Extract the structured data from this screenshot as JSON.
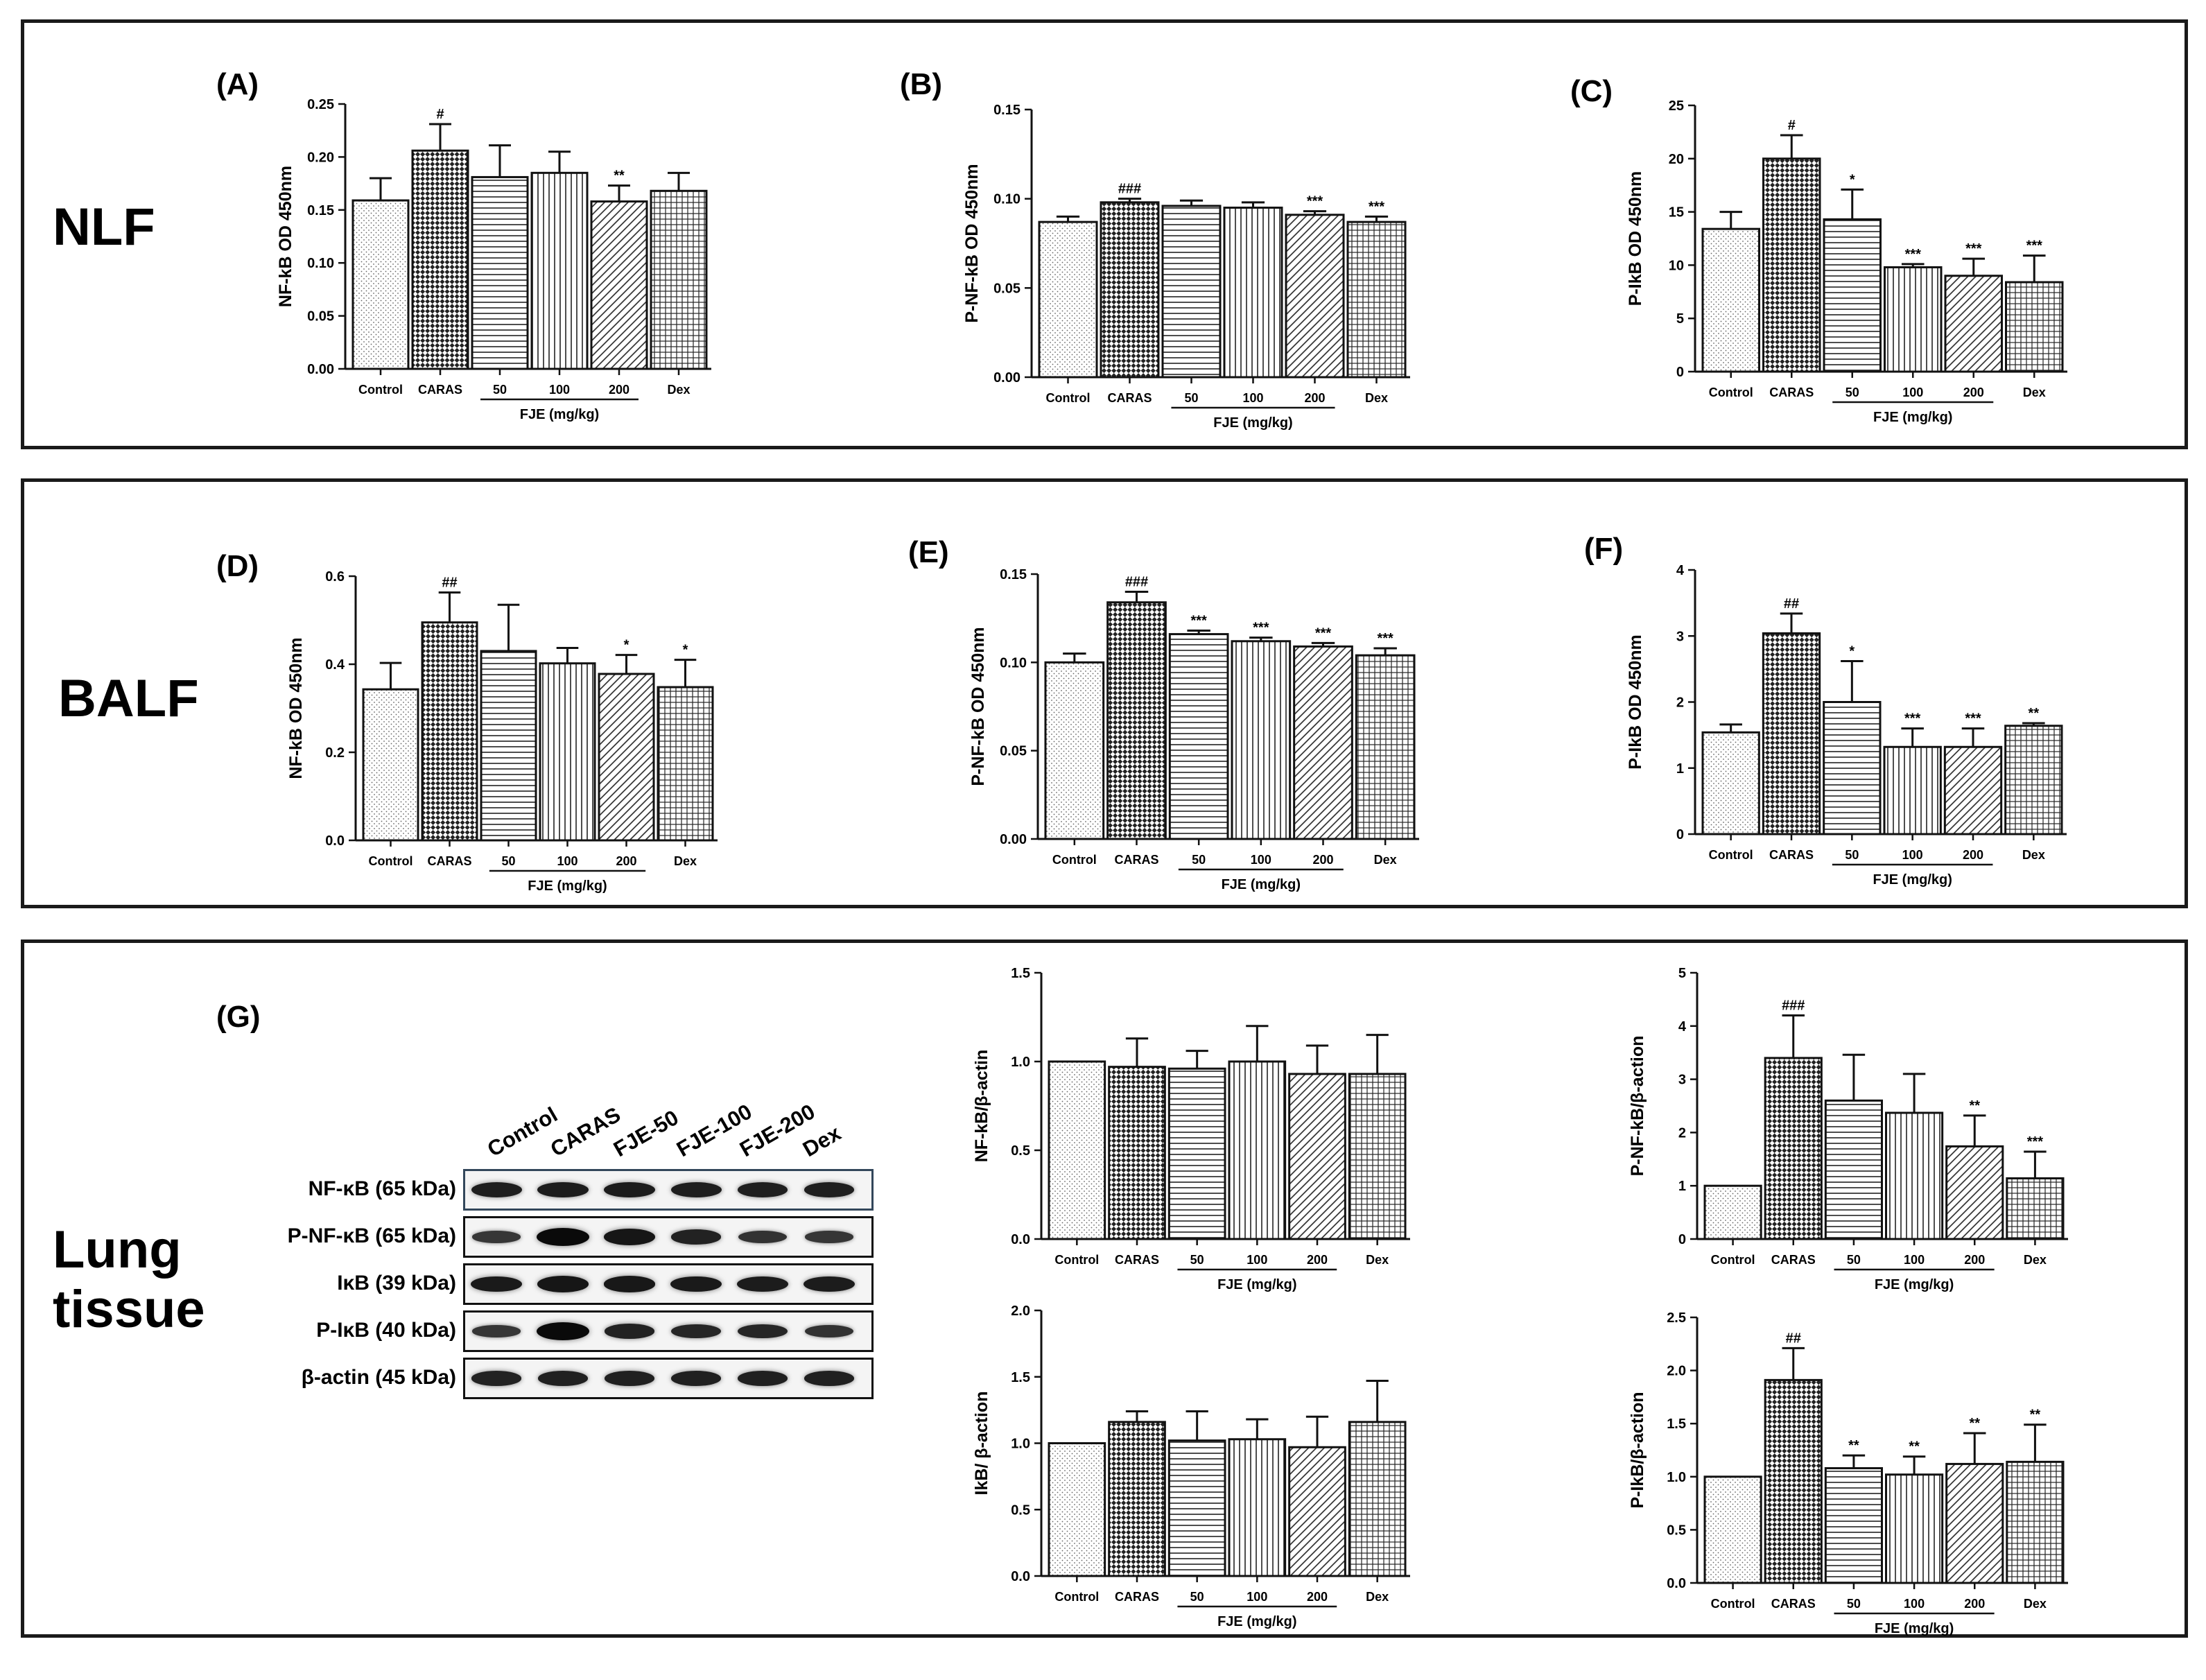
{
  "sections": [
    {
      "label": "NLF"
    },
    {
      "label": "BALF"
    },
    {
      "label": "Lung\ntissue"
    }
  ],
  "panel_letters": [
    "(A)",
    "(B)",
    "(C)",
    "(D)",
    "(E)",
    "(F)",
    "(G)"
  ],
  "group_labels": [
    "Control",
    "CARAS",
    "50",
    "100",
    "200",
    "Dex"
  ],
  "group_xlabel": "FJE (mg/kg)",
  "colors": {
    "bar_fill": "#ffffff",
    "bar_stroke": "#111111",
    "pattern_ink": "#222222"
  },
  "patterns": [
    "dots",
    "checker",
    "hlines",
    "vlines",
    "diag",
    "grid"
  ],
  "blot": {
    "columns": [
      "Control",
      "CARAS",
      "FJE-50",
      "FJE-100",
      "FJE-200",
      "Dex"
    ],
    "rows": [
      {
        "label": "NF-κB (65 kDa)",
        "intensity": [
          0.75,
          0.78,
          0.78,
          0.75,
          0.74,
          0.74
        ]
      },
      {
        "label": "P-NF-κB (65 kDa)",
        "intensity": [
          0.45,
          1.0,
          0.85,
          0.7,
          0.5,
          0.45
        ]
      },
      {
        "label": "IκB (39 kDa)",
        "intensity": [
          0.8,
          0.85,
          0.82,
          0.8,
          0.78,
          0.78
        ]
      },
      {
        "label": "P-IκB (40 kDa)",
        "intensity": [
          0.45,
          1.0,
          0.7,
          0.65,
          0.65,
          0.5
        ]
      },
      {
        "label": "β-actin (45 kDa)",
        "intensity": [
          0.7,
          0.72,
          0.72,
          0.72,
          0.72,
          0.72
        ]
      }
    ]
  },
  "chart_data": [
    {
      "id": "A",
      "type": "bar",
      "ylabel": "NF-kB OD 450nm",
      "ylim": [
        0,
        0.25
      ],
      "yticks": [
        "0.00",
        "0.05",
        "0.10",
        "0.15",
        "0.20",
        "0.25"
      ],
      "values": [
        0.159,
        0.206,
        0.181,
        0.185,
        0.158,
        0.168
      ],
      "errors": [
        0.021,
        0.025,
        0.03,
        0.02,
        0.015,
        0.017
      ],
      "annotations": [
        "",
        "#",
        "",
        "",
        "**",
        ""
      ]
    },
    {
      "id": "B",
      "type": "bar",
      "ylabel": "P-NF-kB OD 450nm",
      "ylim": [
        0,
        0.15
      ],
      "yticks": [
        "0.00",
        "0.05",
        "0.10",
        "0.15"
      ],
      "values": [
        0.087,
        0.098,
        0.096,
        0.095,
        0.091,
        0.087
      ],
      "errors": [
        0.003,
        0.002,
        0.003,
        0.003,
        0.002,
        0.003
      ],
      "annotations": [
        "",
        "###",
        "",
        "",
        "***",
        "***"
      ]
    },
    {
      "id": "C",
      "type": "bar",
      "ylabel": "P-IkB OD 450nm",
      "ylim": [
        0,
        25
      ],
      "yticks": [
        "0",
        "5",
        "10",
        "15",
        "20",
        "25"
      ],
      "values": [
        13.4,
        20.0,
        14.3,
        9.8,
        9.0,
        8.4
      ],
      "errors": [
        1.6,
        2.2,
        2.8,
        0.3,
        1.6,
        2.5
      ],
      "annotations": [
        "",
        "#",
        "*",
        "***",
        "***",
        "***"
      ]
    },
    {
      "id": "D",
      "type": "bar",
      "ylabel": "NF-kB OD 450nm",
      "ylim": [
        0,
        0.6
      ],
      "yticks": [
        "0.0",
        "0.2",
        "0.4",
        "0.6"
      ],
      "values": [
        0.343,
        0.495,
        0.43,
        0.402,
        0.378,
        0.348
      ],
      "errors": [
        0.06,
        0.068,
        0.105,
        0.035,
        0.043,
        0.062
      ],
      "annotations": [
        "",
        "##",
        "",
        "",
        "*",
        "*"
      ]
    },
    {
      "id": "E",
      "type": "bar",
      "ylabel": "P-NF-kB OD 450nm",
      "ylim": [
        0,
        0.15
      ],
      "yticks": [
        "0.00",
        "0.05",
        "0.10",
        "0.15"
      ],
      "values": [
        0.1,
        0.134,
        0.116,
        0.112,
        0.109,
        0.104
      ],
      "errors": [
        0.005,
        0.006,
        0.002,
        0.002,
        0.002,
        0.004
      ],
      "annotations": [
        "",
        "###",
        "***",
        "***",
        "***",
        "***"
      ]
    },
    {
      "id": "F",
      "type": "bar",
      "ylabel": "P-IkB OD 450nm",
      "ylim": [
        0,
        4
      ],
      "yticks": [
        "0",
        "1",
        "2",
        "3",
        "4"
      ],
      "values": [
        1.54,
        3.04,
        2.0,
        1.32,
        1.32,
        1.64
      ],
      "errors": [
        0.12,
        0.3,
        0.62,
        0.28,
        0.28,
        0.04
      ],
      "annotations": [
        "",
        "##",
        "*",
        "***",
        "***",
        "**"
      ]
    },
    {
      "id": "G1",
      "type": "bar",
      "ylabel": "NF-kB/β-actin",
      "ylim": [
        0,
        1.5
      ],
      "yticks": [
        "0.0",
        "0.5",
        "1.0",
        "1.5"
      ],
      "values": [
        1.0,
        0.97,
        0.96,
        1.0,
        0.93,
        0.93
      ],
      "errors": [
        0.0,
        0.16,
        0.1,
        0.2,
        0.16,
        0.22
      ],
      "annotations": [
        "",
        "",
        "",
        "",
        "",
        ""
      ]
    },
    {
      "id": "G2",
      "type": "bar",
      "ylabel": "P-NF-kB/β-action",
      "ylim": [
        0,
        5
      ],
      "yticks": [
        "0",
        "1",
        "2",
        "3",
        "4",
        "5"
      ],
      "values": [
        1.0,
        3.4,
        2.6,
        2.37,
        1.74,
        1.14
      ],
      "errors": [
        0.0,
        0.8,
        0.86,
        0.73,
        0.58,
        0.5
      ],
      "annotations": [
        "",
        "###",
        "",
        "",
        "**",
        "***"
      ]
    },
    {
      "id": "G3",
      "type": "bar",
      "ylabel": "IkB/ β-action",
      "ylim": [
        0,
        2.0
      ],
      "yticks": [
        "0.0",
        "0.5",
        "1.0",
        "1.5",
        "2.0"
      ],
      "values": [
        1.0,
        1.16,
        1.02,
        1.03,
        0.97,
        1.16
      ],
      "errors": [
        0.0,
        0.08,
        0.22,
        0.15,
        0.23,
        0.31
      ],
      "annotations": [
        "",
        "",
        "",
        "",
        "",
        ""
      ]
    },
    {
      "id": "G4",
      "type": "bar",
      "ylabel": "P-IkB/β-action",
      "ylim": [
        0,
        2.5
      ],
      "yticks": [
        "0.0",
        "0.5",
        "1.0",
        "1.5",
        "2.0",
        "2.5"
      ],
      "values": [
        1.0,
        1.91,
        1.08,
        1.02,
        1.12,
        1.14
      ],
      "errors": [
        0.0,
        0.3,
        0.12,
        0.17,
        0.29,
        0.35
      ],
      "annotations": [
        "",
        "##",
        "**",
        "**",
        "**",
        "**"
      ]
    }
  ]
}
